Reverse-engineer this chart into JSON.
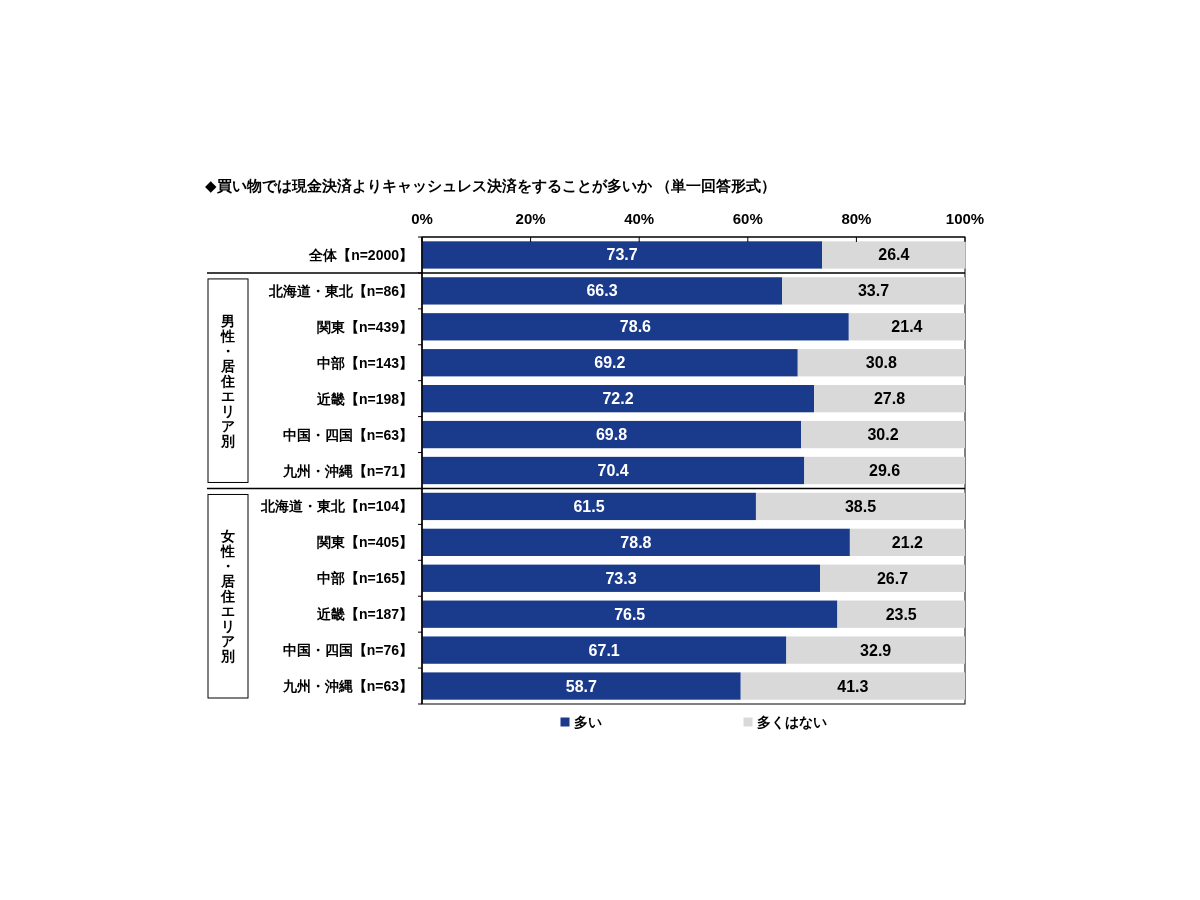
{
  "chart_data": {
    "type": "bar",
    "orientation": "horizontal",
    "stacked": true,
    "title": "◆買い物では現金決済よりキャッシュレス決済をすることが多いか （単一回答形式）",
    "categories": [
      "全体【n=2000】",
      "北海道・東北【n=86】",
      "関東【n=439】",
      "中部【n=143】",
      "近畿【n=198】",
      "中国・四国【n=63】",
      "九州・沖縄【n=71】",
      "北海道・東北【n=104】",
      "関東【n=405】",
      "中部【n=165】",
      "近畿【n=187】",
      "中国・四国【n=76】",
      "九州・沖縄【n=63】"
    ],
    "series": [
      {
        "name": "多い",
        "color": "#1a3b8c",
        "values": [
          73.7,
          66.3,
          78.6,
          69.2,
          72.2,
          69.8,
          70.4,
          61.5,
          78.8,
          73.3,
          76.5,
          67.1,
          58.7
        ]
      },
      {
        "name": "多くはない",
        "color": "#d9d9d9",
        "values": [
          26.4,
          33.7,
          21.4,
          30.8,
          27.8,
          30.2,
          29.6,
          38.5,
          21.2,
          26.7,
          23.5,
          32.9,
          41.3
        ]
      }
    ],
    "xlim": [
      0,
      100
    ],
    "xticks": [
      {
        "value": 0,
        "label": "0%"
      },
      {
        "value": 20,
        "label": "20%"
      },
      {
        "value": 40,
        "label": "40%"
      },
      {
        "value": 60,
        "label": "60%"
      },
      {
        "value": 80,
        "label": "80%"
      },
      {
        "value": 100,
        "label": "100%"
      }
    ],
    "data_labels": true,
    "legend": "bottom",
    "annotations": [
      "男性・居住エリア別",
      "女性・居住エリア別"
    ]
  }
}
